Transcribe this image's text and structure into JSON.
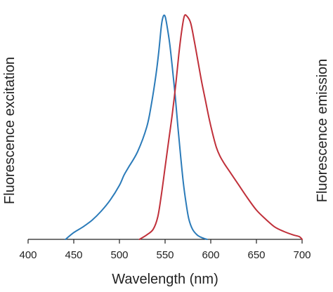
{
  "chart_data": {
    "type": "line",
    "xlabel": "Wavelength (nm)",
    "ylabel_left": "Fluorescence excitation",
    "ylabel_right": "Fluorescence emission",
    "xlim": [
      400,
      700
    ],
    "ylim": [
      0,
      1
    ],
    "x_ticks": [
      "400",
      "450",
      "500",
      "550",
      "600",
      "650",
      "700"
    ],
    "grid": false,
    "y_tick_labels_shown": false,
    "series": [
      {
        "color": "#2b7bb9",
        "points": [
          [
            441,
            0.0
          ],
          [
            450,
            0.03
          ],
          [
            460,
            0.055
          ],
          [
            470,
            0.085
          ],
          [
            480,
            0.125
          ],
          [
            490,
            0.175
          ],
          [
            500,
            0.24
          ],
          [
            505,
            0.285
          ],
          [
            510,
            0.32
          ],
          [
            520,
            0.39
          ],
          [
            530,
            0.5
          ],
          [
            535,
            0.6
          ],
          [
            540,
            0.73
          ],
          [
            543,
            0.83
          ],
          [
            546,
            0.95
          ],
          [
            548,
            0.99
          ],
          [
            550,
            0.99
          ],
          [
            552,
            0.95
          ],
          [
            555,
            0.87
          ],
          [
            558,
            0.76
          ],
          [
            561,
            0.64
          ],
          [
            564,
            0.5
          ],
          [
            567,
            0.37
          ],
          [
            570,
            0.25
          ],
          [
            573,
            0.16
          ],
          [
            576,
            0.09
          ],
          [
            580,
            0.045
          ],
          [
            585,
            0.02
          ],
          [
            590,
            0.008
          ],
          [
            596,
            0.0
          ]
        ]
      },
      {
        "color": "#c0303a",
        "points": [
          [
            522,
            0.0
          ],
          [
            530,
            0.02
          ],
          [
            537,
            0.045
          ],
          [
            542,
            0.1
          ],
          [
            546,
            0.2
          ],
          [
            550,
            0.32
          ],
          [
            554,
            0.44
          ],
          [
            558,
            0.56
          ],
          [
            562,
            0.7
          ],
          [
            565,
            0.82
          ],
          [
            568,
            0.92
          ],
          [
            571,
            0.99
          ],
          [
            574,
            0.99
          ],
          [
            578,
            0.96
          ],
          [
            582,
            0.88
          ],
          [
            586,
            0.79
          ],
          [
            590,
            0.7
          ],
          [
            594,
            0.62
          ],
          [
            598,
            0.54
          ],
          [
            602,
            0.47
          ],
          [
            606,
            0.41
          ],
          [
            610,
            0.37
          ],
          [
            615,
            0.335
          ],
          [
            620,
            0.305
          ],
          [
            630,
            0.245
          ],
          [
            640,
            0.185
          ],
          [
            650,
            0.13
          ],
          [
            660,
            0.09
          ],
          [
            670,
            0.055
          ],
          [
            680,
            0.035
          ],
          [
            690,
            0.02
          ],
          [
            697,
            0.012
          ],
          [
            700,
            0.0
          ]
        ]
      }
    ]
  }
}
